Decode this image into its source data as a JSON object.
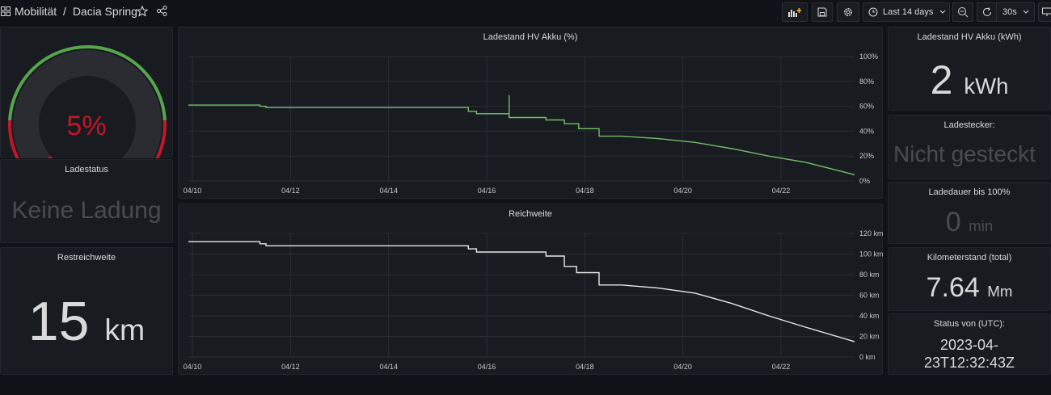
{
  "breadcrumb": {
    "folder": "Mobilität",
    "separator": "/",
    "dashboard": "Dacia Spring"
  },
  "toolbar": {
    "time_range": "Last 14 days",
    "refresh_interval": "30s"
  },
  "gauge": {
    "value_text": "5%",
    "value_fraction": 0.05
  },
  "panels": {
    "ladestatus": {
      "title": "Ladestatus",
      "value": "Keine Ladung"
    },
    "restreichweite": {
      "title": "Restreichweite",
      "value": "15",
      "unit": "km"
    },
    "akku_kwh": {
      "title": "Ladestand HV Akku (kWh)",
      "value": "2",
      "unit": "kWh"
    },
    "ladestecker": {
      "title": "Ladestecker:",
      "value": "Nicht gesteckt"
    },
    "ladedauer": {
      "title": "Ladedauer bis 100%",
      "value": "0",
      "unit": "min"
    },
    "kilometerstand": {
      "title": "Kilometerstand (total)",
      "value": "7.64",
      "unit": "Mm"
    },
    "status": {
      "title": "Status von (UTC):",
      "value_line1": "2023-04-",
      "value_line2": "23T12:32:43Z"
    }
  },
  "chart_data": [
    {
      "type": "line",
      "title": "Ladestand HV Akku (%)",
      "x_ticks": [
        "04/10",
        "04/12",
        "04/14",
        "04/16",
        "04/18",
        "04/20",
        "04/22"
      ],
      "y_ticks": [
        "0%",
        "20%",
        "40%",
        "60%",
        "80%",
        "100%"
      ],
      "ylim": [
        0,
        100
      ],
      "xlim": [
        "2023-04-09T22:00",
        "2023-04-23T12:00"
      ],
      "color": "#73bf69",
      "points": [
        [
          "2023-04-09T22:00",
          61
        ],
        [
          "2023-04-11T09:00",
          61
        ],
        [
          "2023-04-11T09:00",
          60
        ],
        [
          "2023-04-11T12:00",
          60
        ],
        [
          "2023-04-11T12:00",
          59
        ],
        [
          "2023-04-15T15:00",
          59
        ],
        [
          "2023-04-15T15:00",
          56
        ],
        [
          "2023-04-15T19:00",
          56
        ],
        [
          "2023-04-15T19:00",
          54
        ],
        [
          "2023-04-16T11:00",
          54
        ],
        [
          "2023-04-16T11:00",
          69
        ],
        [
          "2023-04-16T11:00",
          51
        ],
        [
          "2023-04-17T05:00",
          51
        ],
        [
          "2023-04-17T05:00",
          49
        ],
        [
          "2023-04-17T14:00",
          49
        ],
        [
          "2023-04-17T14:00",
          46
        ],
        [
          "2023-04-17T21:00",
          46
        ],
        [
          "2023-04-17T21:00",
          42
        ],
        [
          "2023-04-18T07:00",
          42
        ],
        [
          "2023-04-18T07:00",
          36
        ],
        [
          "2023-04-18T18:00",
          36
        ],
        [
          "2023-04-19T12:00",
          34
        ],
        [
          "2023-04-20T06:00",
          31
        ],
        [
          "2023-04-21T00:00",
          26
        ],
        [
          "2023-04-21T18:00",
          20
        ],
        [
          "2023-04-22T12:00",
          15
        ],
        [
          "2023-04-23T12:00",
          5
        ]
      ]
    },
    {
      "type": "line",
      "title": "Reichweite",
      "x_ticks": [
        "04/10",
        "04/12",
        "04/14",
        "04/16",
        "04/18",
        "04/20",
        "04/22"
      ],
      "y_ticks": [
        "0 km",
        "20 km",
        "40 km",
        "60 km",
        "80 km",
        "100 km",
        "120 km"
      ],
      "ylim": [
        0,
        120
      ],
      "xlim": [
        "2023-04-09T22:00",
        "2023-04-23T12:00"
      ],
      "color": "#e8e8e8",
      "points": [
        [
          "2023-04-09T22:00",
          112
        ],
        [
          "2023-04-11T09:00",
          112
        ],
        [
          "2023-04-11T09:00",
          110
        ],
        [
          "2023-04-11T12:00",
          110
        ],
        [
          "2023-04-11T12:00",
          108
        ],
        [
          "2023-04-15T15:00",
          108
        ],
        [
          "2023-04-15T15:00",
          105
        ],
        [
          "2023-04-15T19:00",
          105
        ],
        [
          "2023-04-15T19:00",
          102
        ],
        [
          "2023-04-17T05:00",
          102
        ],
        [
          "2023-04-17T05:00",
          98
        ],
        [
          "2023-04-17T14:00",
          98
        ],
        [
          "2023-04-17T14:00",
          88
        ],
        [
          "2023-04-17T20:00",
          88
        ],
        [
          "2023-04-17T20:00",
          82
        ],
        [
          "2023-04-18T07:00",
          82
        ],
        [
          "2023-04-18T07:00",
          70
        ],
        [
          "2023-04-18T18:00",
          70
        ],
        [
          "2023-04-19T12:00",
          67
        ],
        [
          "2023-04-20T06:00",
          62
        ],
        [
          "2023-04-21T00:00",
          52
        ],
        [
          "2023-04-21T18:00",
          40
        ],
        [
          "2023-04-22T12:00",
          29
        ],
        [
          "2023-04-23T12:00",
          15
        ]
      ]
    }
  ]
}
